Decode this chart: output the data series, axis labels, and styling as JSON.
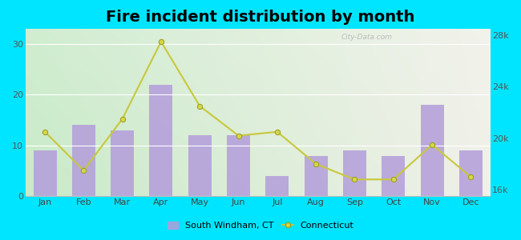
{
  "title": "Fire incident distribution by month",
  "months": [
    "Jan",
    "Feb",
    "Mar",
    "Apr",
    "May",
    "Jun",
    "Jul",
    "Aug",
    "Sep",
    "Oct",
    "Nov",
    "Dec"
  ],
  "bar_values": [
    9,
    14,
    13,
    22,
    12,
    12,
    4,
    8,
    9,
    8,
    18,
    9
  ],
  "line_values": [
    20500,
    17500,
    21500,
    27500,
    22500,
    20200,
    20500,
    18000,
    16800,
    16800,
    19500,
    17000
  ],
  "bar_color": "#b39ddb",
  "bar_alpha": 0.85,
  "line_color": "#c8c83a",
  "marker_face": "#d4d84a",
  "marker_edge": "#a0a020",
  "background_outer": "#00e5ff",
  "bg_left_color": "#c8eac8",
  "bg_right_color": "#f0f0e8",
  "left_ylim": [
    0,
    33
  ],
  "right_ylim": [
    15500,
    28500
  ],
  "left_yticks": [
    0,
    10,
    20,
    30
  ],
  "right_yticks": [
    16000,
    20000,
    24000,
    28000
  ],
  "right_yticklabels": [
    "16k",
    "20k",
    "24k",
    "28k"
  ],
  "legend_label_bar": "South Windham, CT",
  "legend_label_line": "Connecticut",
  "title_fontsize": 14,
  "tick_fontsize": 8,
  "watermark": "City-Data.com"
}
